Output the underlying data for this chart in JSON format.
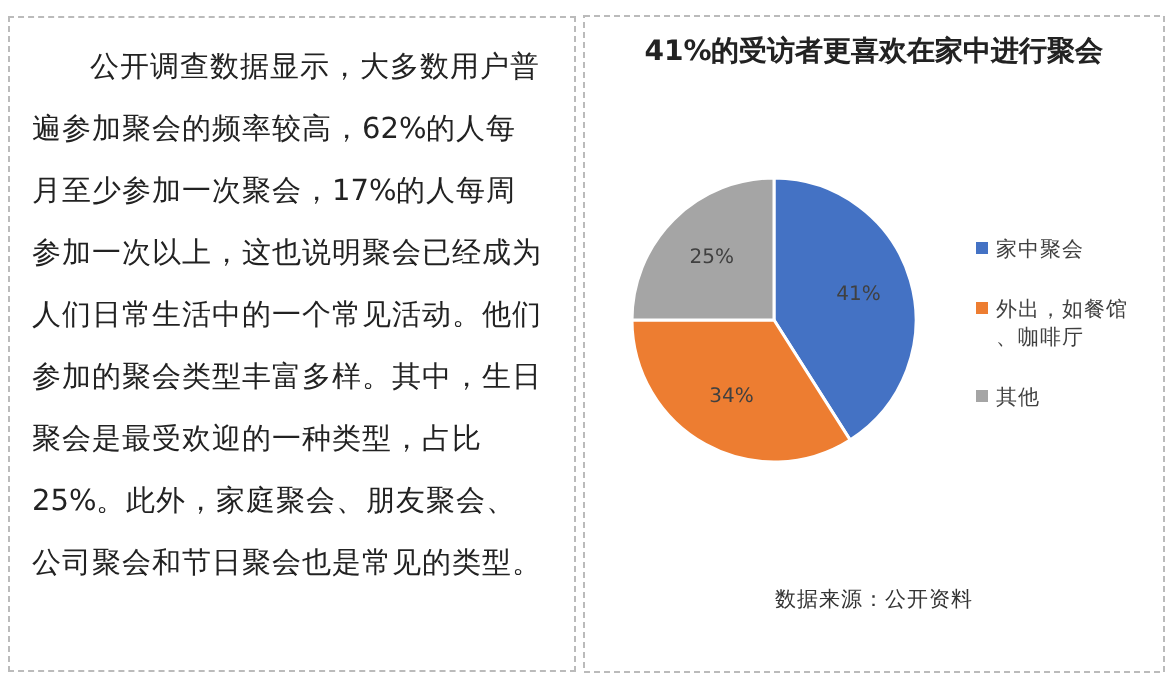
{
  "chart_data": {
    "type": "pie",
    "title": "41%的受访者更喜欢在家中进行聚会",
    "categories": [
      "家中聚会",
      "外出，如餐馆、咖啡厅",
      "其他"
    ],
    "values": [
      41,
      34,
      25
    ],
    "colors": [
      "#4472c4",
      "#ed7d31",
      "#a5a5a5"
    ],
    "value_labels": [
      "41%",
      "34%",
      "25%"
    ],
    "legend": "right",
    "annotations": [
      "公开调查数据显示，大多数用户普遍参加聚会的频率较高，62%的人每月至少参加一次聚会，17%的人每周参加一次以上，这也说明聚会已经成为人们日常生活中的一个常见活动。他们参加的聚会类型丰富多样。其中，生日聚会是最受欢迎的一种类型，占比 25%。此外，家庭聚会、朋友聚会、公司聚会和节日聚会也是常见的类型。",
      "数据来源：公开资料"
    ]
  }
}
